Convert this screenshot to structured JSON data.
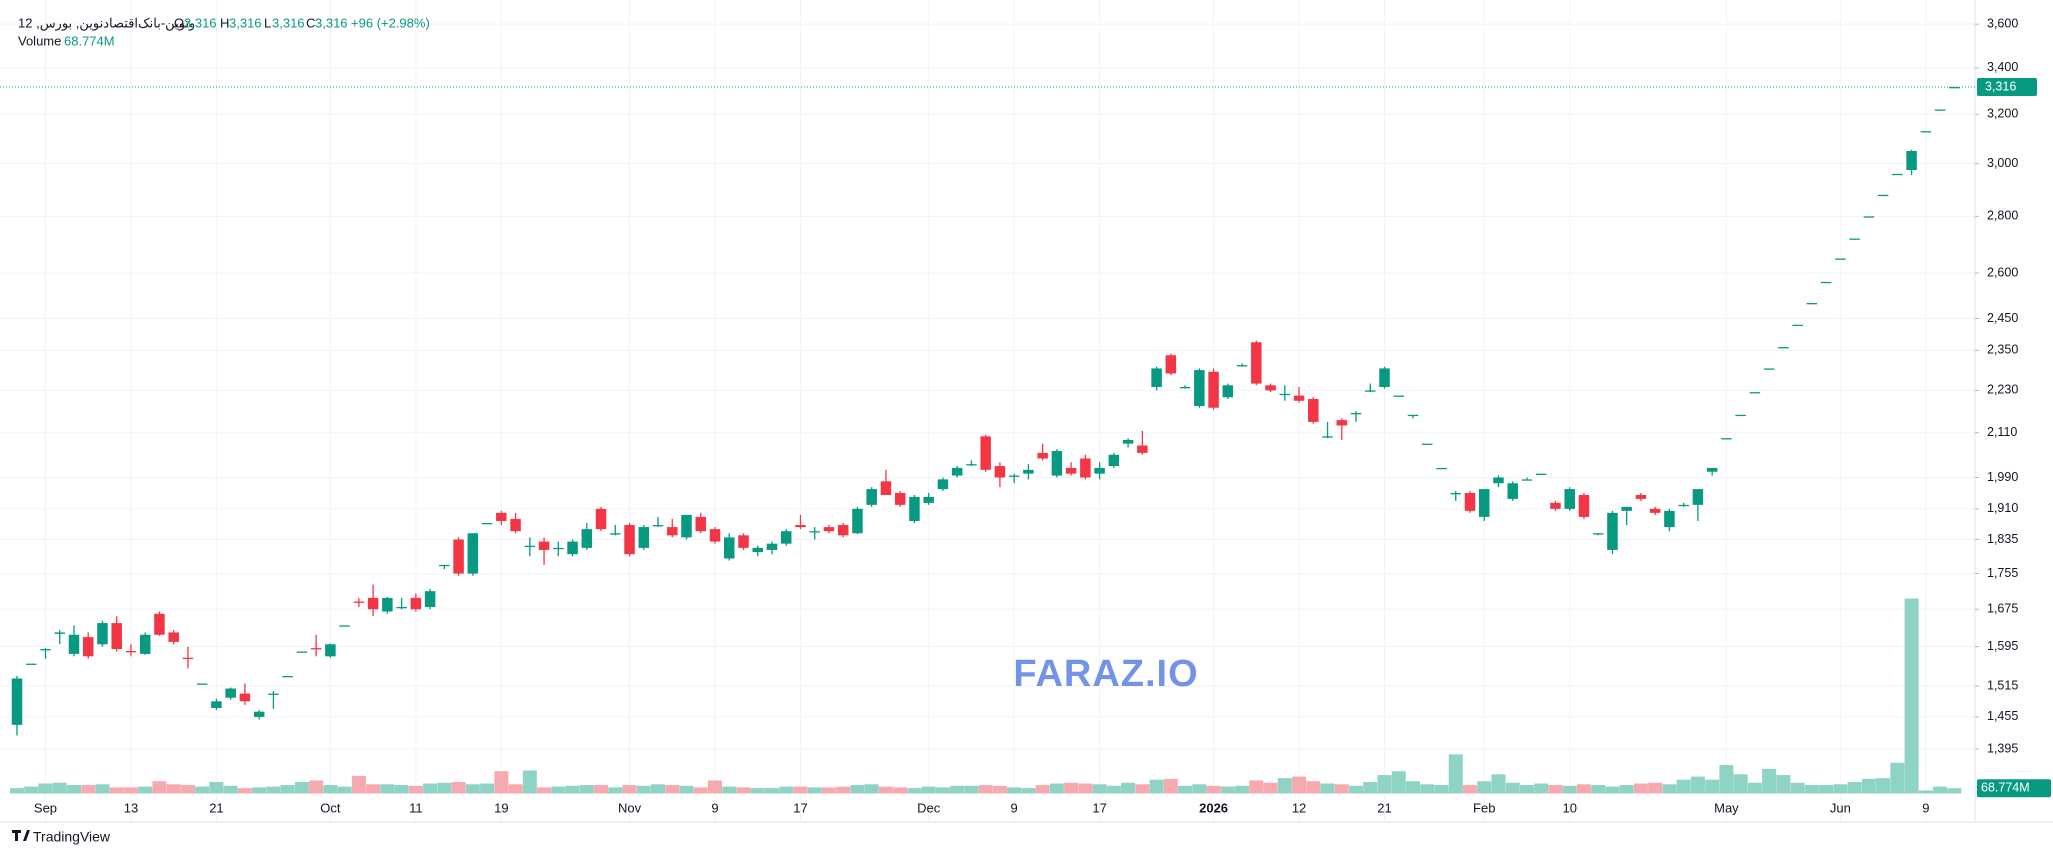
{
  "header": {
    "symbol": "وتوین-بانک‌اقتصادنوین, بورس, 12",
    "o": "O",
    "o_value": "3,316",
    "h": "H",
    "h_value": "3,316",
    "l": "L",
    "l_value": "3,316",
    "c": "C",
    "c_value": "3,316",
    "change": "+96 (+2.98%)",
    "volume": "Volume",
    "volume_value": "68.774M"
  },
  "footer": {
    "brand": "TradingView"
  },
  "watermark": "FARAZ.IO",
  "chart_data": {
    "type": "candlestick",
    "log_scale": true,
    "grid": true,
    "up_color": "#089981",
    "down_color": "#f23645",
    "volume_up_color": "#8fd3c4",
    "volume_down_color": "#f7a9b0",
    "ylim": [
      1330,
      3665
    ],
    "yticks": [
      {
        "value": 3600,
        "label": "3,600"
      },
      {
        "value": 3400,
        "label": "3,400"
      },
      {
        "value": 3200,
        "label": "3,200"
      },
      {
        "value": 3000,
        "label": "3,000"
      },
      {
        "value": 2800,
        "label": "2,800"
      },
      {
        "value": 2600,
        "label": "2,600"
      },
      {
        "value": 2450,
        "label": "2,450"
      },
      {
        "value": 2350,
        "label": "2,350"
      },
      {
        "value": 2230,
        "label": "2,230"
      },
      {
        "value": 2110,
        "label": "2,110"
      },
      {
        "value": 1990,
        "label": "1,990"
      },
      {
        "value": 1910,
        "label": "1,910"
      },
      {
        "value": 1835,
        "label": "1,835"
      },
      {
        "value": 1755,
        "label": "1,755"
      },
      {
        "value": 1675,
        "label": "1,675"
      },
      {
        "value": 1595,
        "label": "1,595"
      },
      {
        "value": 1515,
        "label": "1,515"
      },
      {
        "value": 1455,
        "label": "1,455"
      },
      {
        "value": 1395,
        "label": "1,395"
      }
    ],
    "last_price_label": "3,316",
    "last_volume_label": "68.774M",
    "categories": [
      null,
      null,
      "Sep",
      null,
      null,
      null,
      null,
      null,
      "13",
      null,
      null,
      null,
      null,
      null,
      "21",
      null,
      null,
      null,
      null,
      null,
      null,
      null,
      "Oct",
      null,
      null,
      null,
      null,
      null,
      "11",
      null,
      null,
      null,
      null,
      null,
      "19",
      null,
      null,
      null,
      null,
      null,
      null,
      null,
      null,
      "Nov",
      null,
      null,
      null,
      null,
      null,
      "9",
      null,
      null,
      null,
      null,
      null,
      "17",
      null,
      null,
      null,
      null,
      null,
      null,
      null,
      null,
      "Dec",
      null,
      null,
      null,
      null,
      null,
      "9",
      null,
      null,
      null,
      null,
      null,
      "17",
      null,
      null,
      null,
      null,
      null,
      null,
      null,
      "2026",
      null,
      null,
      null,
      null,
      null,
      "12",
      null,
      null,
      null,
      null,
      null,
      "21",
      null,
      null,
      null,
      null,
      null,
      null,
      "Feb",
      null,
      null,
      null,
      null,
      null,
      "10",
      null,
      null,
      null,
      null,
      null,
      null,
      null,
      null,
      null,
      null,
      "May",
      null,
      null,
      null,
      null,
      null,
      null,
      null,
      "Jun",
      null,
      null,
      null,
      null,
      null,
      "9",
      null,
      null
    ],
    "open": [
      1440,
      1560,
      1588,
      1622,
      1580,
      1615,
      1600,
      1645,
      1586,
      1580,
      1665,
      1625,
      1572,
      1520,
      1472,
      1492,
      1500,
      1455,
      1500,
      1535,
      1585,
      1592,
      1575,
      1640,
      1692,
      1700,
      1670,
      1680,
      1700,
      1680,
      1775,
      1835,
      1755,
      1875,
      1900,
      1885,
      1820,
      1830,
      1815,
      1800,
      1815,
      1910,
      1850,
      1870,
      1815,
      1870,
      1865,
      1840,
      1890,
      1860,
      1790,
      1845,
      1805,
      1810,
      1825,
      1870,
      1855,
      1865,
      1870,
      1850,
      1920,
      1980,
      1950,
      1880,
      1925,
      1960,
      1995,
      2025,
      2100,
      2020,
      1995,
      2000,
      2055,
      1995,
      2015,
      2040,
      2000,
      2020,
      2080,
      2075,
      2240,
      2335,
      2240,
      2185,
      2285,
      2210,
      2305,
      2375,
      2245,
      2220,
      2215,
      2205,
      2100,
      2145,
      2165,
      2230,
      2240,
      2215,
      2160,
      2080,
      2015,
      1950,
      1950,
      1890,
      1975,
      1935,
      1985,
      2000,
      1925,
      1910,
      1945,
      1850,
      1810,
      1905,
      1945,
      1910,
      1865,
      1920,
      1920,
      2005,
      2095,
      2160,
      2225,
      2295,
      2360,
      2430,
      2500,
      2570,
      2650,
      2720,
      2800,
      2880,
      2960,
      2975,
      3130,
      3220,
      3316
    ],
    "high": [
      1535,
      1560,
      1592,
      1630,
      1640,
      1625,
      1650,
      1660,
      1600,
      1625,
      1670,
      1630,
      1595,
      1520,
      1490,
      1512,
      1520,
      1468,
      1505,
      1535,
      1585,
      1620,
      1602,
      1640,
      1700,
      1730,
      1702,
      1700,
      1710,
      1720,
      1775,
      1840,
      1850,
      1875,
      1905,
      1900,
      1840,
      1840,
      1830,
      1835,
      1875,
      1915,
      1870,
      1875,
      1870,
      1890,
      1885,
      1895,
      1900,
      1865,
      1850,
      1850,
      1820,
      1830,
      1860,
      1895,
      1865,
      1870,
      1875,
      1915,
      1965,
      2010,
      1955,
      1945,
      1950,
      1990,
      2020,
      2035,
      2105,
      2030,
      2000,
      2025,
      2080,
      2065,
      2030,
      2050,
      2030,
      2055,
      2095,
      2115,
      2300,
      2340,
      2245,
      2295,
      2295,
      2250,
      2310,
      2380,
      2250,
      2245,
      2240,
      2210,
      2140,
      2150,
      2170,
      2250,
      2300,
      2215,
      2160,
      2080,
      2015,
      1955,
      1955,
      1960,
      1995,
      1980,
      1990,
      2000,
      1930,
      1965,
      1950,
      1850,
      1905,
      1915,
      1950,
      1915,
      1910,
      1925,
      1960,
      2015,
      2095,
      2160,
      2225,
      2295,
      2360,
      2430,
      2500,
      2570,
      2650,
      2720,
      2800,
      2880,
      2960,
      3055,
      3130,
      3220,
      3316
    ],
    "low": [
      1420,
      1560,
      1570,
      1600,
      1575,
      1570,
      1595,
      1585,
      1575,
      1578,
      1618,
      1600,
      1550,
      1520,
      1468,
      1488,
      1478,
      1450,
      1470,
      1535,
      1585,
      1575,
      1572,
      1640,
      1680,
      1660,
      1665,
      1675,
      1670,
      1675,
      1765,
      1750,
      1750,
      1875,
      1870,
      1850,
      1795,
      1775,
      1795,
      1795,
      1810,
      1855,
      1845,
      1795,
      1810,
      1865,
      1840,
      1835,
      1850,
      1825,
      1785,
      1810,
      1795,
      1800,
      1820,
      1860,
      1835,
      1850,
      1840,
      1848,
      1915,
      1945,
      1915,
      1875,
      1920,
      1955,
      1990,
      2020,
      2005,
      1965,
      1975,
      1985,
      2035,
      1990,
      1995,
      1985,
      1985,
      2015,
      2070,
      2050,
      2230,
      2275,
      2235,
      2180,
      2175,
      2205,
      2300,
      2245,
      2225,
      2200,
      2195,
      2135,
      2095,
      2090,
      2140,
      2225,
      2235,
      2215,
      2150,
      2080,
      2015,
      1930,
      1900,
      1880,
      1965,
      1930,
      1985,
      2000,
      1905,
      1905,
      1885,
      1845,
      1800,
      1870,
      1930,
      1895,
      1855,
      1915,
      1880,
      1995,
      2095,
      2160,
      2225,
      2295,
      2360,
      2430,
      2500,
      2570,
      2650,
      2720,
      2800,
      2880,
      2960,
      2955,
      3130,
      3220,
      3316
    ],
    "close": [
      1530,
      1560,
      1590,
      1625,
      1620,
      1575,
      1645,
      1590,
      1585,
      1620,
      1620,
      1605,
      1570,
      1520,
      1485,
      1510,
      1485,
      1465,
      1500,
      1535,
      1585,
      1590,
      1600,
      1640,
      1690,
      1675,
      1700,
      1680,
      1675,
      1715,
      1775,
      1755,
      1850,
      1875,
      1880,
      1855,
      1820,
      1810,
      1815,
      1830,
      1860,
      1860,
      1850,
      1800,
      1865,
      1870,
      1845,
      1895,
      1855,
      1830,
      1840,
      1815,
      1815,
      1825,
      1855,
      1865,
      1855,
      1855,
      1845,
      1910,
      1960,
      1945,
      1920,
      1940,
      1940,
      1985,
      2015,
      2025,
      2010,
      1990,
      1995,
      2010,
      2040,
      2060,
      2000,
      1990,
      2015,
      2050,
      2090,
      2055,
      2295,
      2280,
      2240,
      2290,
      2180,
      2245,
      2305,
      2250,
      2230,
      2220,
      2200,
      2140,
      2100,
      2130,
      2165,
      2230,
      2295,
      2215,
      2160,
      2080,
      2015,
      1950,
      1905,
      1960,
      1990,
      1975,
      1985,
      2000,
      1910,
      1960,
      1890,
      1850,
      1900,
      1915,
      1935,
      1900,
      1905,
      1920,
      1960,
      2015,
      2095,
      2160,
      2225,
      2295,
      2360,
      2430,
      2500,
      2570,
      2650,
      2720,
      2800,
      2880,
      2960,
      3050,
      3130,
      3220,
      3316
    ],
    "volume": [
      70,
      90,
      130,
      140,
      110,
      110,
      120,
      80,
      80,
      90,
      160,
      120,
      110,
      90,
      150,
      100,
      70,
      80,
      90,
      110,
      150,
      170,
      110,
      90,
      230,
      120,
      120,
      110,
      100,
      130,
      140,
      150,
      120,
      130,
      290,
      120,
      300,
      80,
      90,
      100,
      110,
      110,
      80,
      110,
      100,
      120,
      110,
      100,
      80,
      170,
      90,
      80,
      70,
      70,
      90,
      90,
      80,
      80,
      90,
      110,
      120,
      90,
      80,
      70,
      90,
      80,
      100,
      100,
      110,
      100,
      80,
      70,
      110,
      130,
      140,
      130,
      120,
      100,
      140,
      120,
      180,
      190,
      100,
      120,
      100,
      90,
      100,
      170,
      140,
      200,
      220,
      160,
      130,
      120,
      100,
      150,
      240,
      290,
      160,
      120,
      110,
      510,
      110,
      160,
      250,
      140,
      110,
      130,
      110,
      100,
      120,
      110,
      90,
      110,
      130,
      140,
      120,
      180,
      220,
      180,
      370,
      250,
      140,
      320,
      240,
      140,
      110,
      110,
      120,
      150,
      190,
      200,
      400,
      2540,
      40,
      90,
      68.774
    ]
  }
}
